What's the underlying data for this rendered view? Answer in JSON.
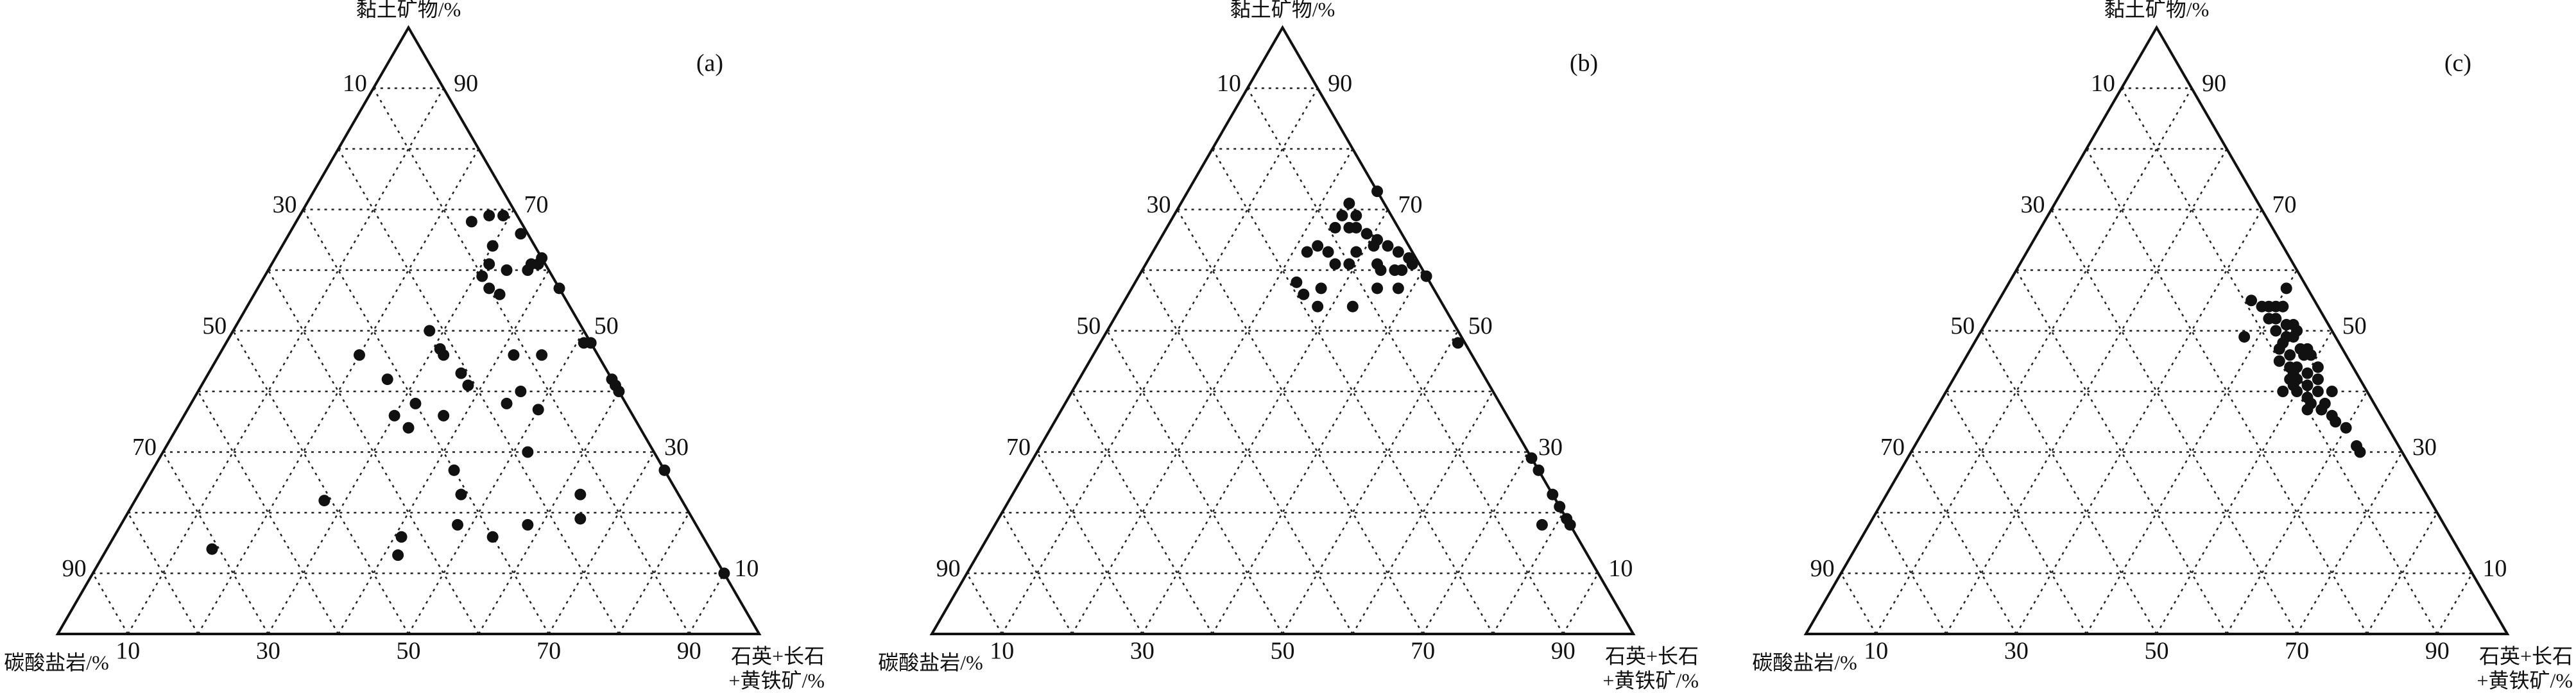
{
  "chart_data": [
    {
      "type": "ternary",
      "title": "(a)",
      "top_label": "黏土矿物/%",
      "left_label": "碳酸盐岩/%",
      "right_label": [
        "石英+长石",
        "+黄铁矿/%"
      ],
      "clay_ticks": [
        10,
        30,
        50,
        70,
        90
      ],
      "carbonate_ticks": [
        10,
        30,
        50,
        70,
        90
      ],
      "quartz_ticks": [
        10,
        30,
        50,
        70,
        90
      ],
      "gridlines": [
        10,
        20,
        30,
        40,
        50,
        60,
        70,
        80,
        90
      ],
      "grid": true,
      "color": "#111111",
      "clay": [
        69,
        69,
        68,
        66,
        64,
        61,
        60,
        60,
        62,
        61,
        61,
        59,
        57,
        56,
        57,
        50,
        48,
        48,
        47,
        46,
        46,
        46,
        46,
        43,
        41,
        42,
        42,
        41,
        40,
        40,
        38,
        38,
        36,
        34,
        36,
        37,
        27,
        30,
        27,
        23,
        22,
        23,
        19,
        18,
        18,
        16,
        16,
        14,
        13,
        10
      ],
      "carbonate": [
        4,
        2,
        7,
        1,
        6,
        8,
        6,
        3,
        0,
        1,
        2,
        10,
        10,
        9,
        0,
        22,
        1,
        0,
        22,
        22,
        34,
        12,
        8,
        21,
        21,
        32,
        0,
        0,
        0,
        14,
        17,
        30,
        34,
        33,
        27,
        13,
        30,
        18,
        0,
        31,
        51,
        14,
        16,
        34,
        24,
        43,
        30,
        71,
        45,
        0
      ],
      "quartz": [
        27,
        29,
        25,
        33,
        30,
        31,
        34,
        37,
        38,
        38,
        37,
        31,
        33,
        35,
        43,
        28,
        51,
        52,
        31,
        32,
        20,
        42,
        46,
        36,
        38,
        26,
        58,
        59,
        60,
        46,
        45,
        32,
        30,
        33,
        37,
        50,
        43,
        52,
        73,
        46,
        27,
        63,
        65,
        48,
        58,
        41,
        54,
        15,
        42,
        90
      ]
    },
    {
      "type": "ternary",
      "title": "(b)",
      "top_label": "黏土矿物/%",
      "left_label": "碳酸盐岩/%",
      "right_label": [
        "石英+长石",
        "+黄铁矿/%"
      ],
      "clay_ticks": [
        10,
        30,
        50,
        70,
        90
      ],
      "carbonate_ticks": [
        10,
        30,
        50,
        70,
        90
      ],
      "quartz_ticks": [
        10,
        30,
        50,
        70,
        90
      ],
      "gridlines": [
        10,
        20,
        30,
        40,
        50,
        60,
        70,
        80,
        90
      ],
      "grid": true,
      "color": "#111111",
      "clay": [
        73,
        71,
        69,
        69,
        67,
        67,
        67,
        66,
        65,
        64,
        63,
        62,
        61,
        64,
        63,
        63,
        61,
        61,
        60,
        60,
        60,
        59,
        58,
        56,
        57,
        57,
        57,
        54,
        54,
        48,
        29,
        27,
        23,
        21,
        19,
        18,
        18,
        61,
        63,
        64
      ],
      "carbonate": [
        0,
        5,
        5,
        7,
        7,
        9,
        6,
        5,
        4,
        3,
        2,
        1,
        1,
        13,
        12,
        15,
        10,
        6,
        6,
        4,
        3,
        0,
        19,
        19,
        16,
        8,
        5,
        18,
        13,
        1,
        0,
        0,
        0,
        0,
        0,
        4,
        0,
        12,
        8,
        5
      ],
      "quartz": [
        27,
        24,
        26,
        24,
        26,
        24,
        27,
        29,
        31,
        33,
        35,
        37,
        38,
        23,
        25,
        22,
        29,
        33,
        34,
        36,
        37,
        41,
        23,
        25,
        27,
        35,
        38,
        28,
        33,
        51,
        71,
        73,
        77,
        79,
        81,
        78,
        82,
        27,
        29,
        31
      ]
    },
    {
      "type": "ternary",
      "title": "(c)",
      "top_label": "黏土矿物/%",
      "left_label": "碳酸盐岩/%",
      "right_label": [
        "石英+长石",
        "+黄铁矿/%"
      ],
      "clay_ticks": [
        10,
        30,
        50,
        70,
        90
      ],
      "carbonate_ticks": [
        10,
        30,
        50,
        70,
        90
      ],
      "quartz_ticks": [
        10,
        30,
        50,
        70,
        90
      ],
      "gridlines": [
        10,
        20,
        30,
        40,
        50,
        60,
        70,
        80,
        90
      ],
      "grid": true,
      "color": "#111111",
      "clay": [
        55,
        54,
        54,
        54,
        54,
        54,
        57,
        49,
        52,
        52,
        51,
        50,
        49,
        51,
        49,
        48,
        47,
        46,
        47,
        46,
        45,
        44,
        44,
        43,
        44,
        42,
        42,
        41,
        42,
        40,
        39,
        40,
        38,
        40,
        37,
        37,
        36,
        35,
        34,
        31,
        30,
        40,
        41,
        37,
        38,
        43,
        47,
        46,
        42,
        50
      ],
      "carbonate": [
        9,
        8,
        7,
        6,
        5,
        5,
        3,
        13,
        8,
        7,
        6,
        8,
        7,
        5,
        6,
        8,
        9,
        8,
        6,
        6,
        10,
        9,
        8,
        7,
        5,
        10,
        9,
        8,
        6,
        10,
        9,
        7,
        7,
        5,
        10,
        8,
        7,
        7,
        6,
        6,
        6,
        12,
        10,
        8,
        9,
        9,
        5,
        5,
        6,
        5
      ],
      "quartz": [
        36,
        38,
        39,
        40,
        41,
        41,
        40,
        38,
        40,
        41,
        43,
        42,
        44,
        44,
        45,
        44,
        44,
        46,
        47,
        48,
        45,
        47,
        48,
        50,
        51,
        48,
        49,
        51,
        52,
        50,
        52,
        53,
        55,
        55,
        53,
        55,
        57,
        58,
        60,
        63,
        64,
        48,
        49,
        55,
        53,
        48,
        48,
        49,
        52,
        45
      ]
    }
  ]
}
